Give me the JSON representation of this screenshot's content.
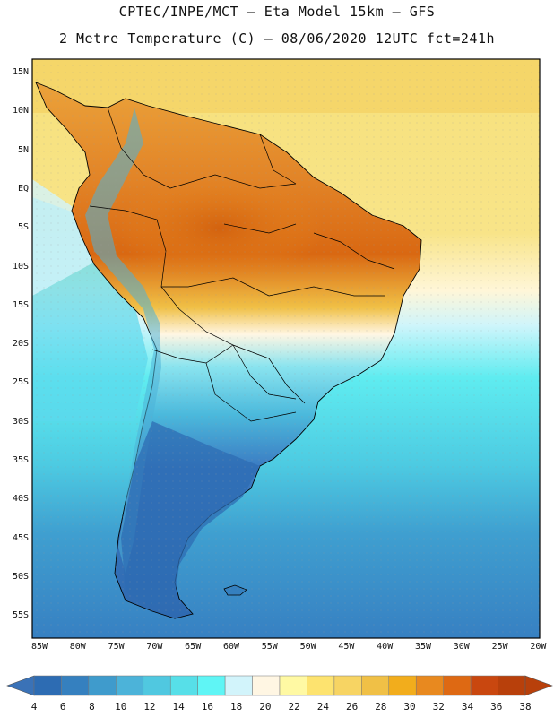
{
  "header": {
    "line1": "CPTEC/INPE/MCT –  Eta Model 15km – GFS",
    "line2": "2 Metre Temperature (C) – 08/06/2020 12UTC fct=241h"
  },
  "axes": {
    "lat_labels": [
      "15N",
      "10N",
      "5N",
      "EQ",
      "5S",
      "10S",
      "15S",
      "20S",
      "25S",
      "30S",
      "35S",
      "40S",
      "45S",
      "50S",
      "55S"
    ],
    "lon_labels": [
      "85W",
      "80W",
      "75W",
      "70W",
      "65W",
      "60W",
      "55W",
      "50W",
      "45W",
      "40W",
      "35W",
      "30W",
      "25W",
      "20W"
    ]
  },
  "colorbar": {
    "levels": [
      "4",
      "6",
      "8",
      "10",
      "12",
      "14",
      "16",
      "18",
      "20",
      "22",
      "24",
      "26",
      "28",
      "30",
      "32",
      "34",
      "36",
      "38"
    ],
    "colors": [
      "#2d6cb3",
      "#3580bf",
      "#3f9bcc",
      "#4cb3d9",
      "#50c8e0",
      "#57dfe8",
      "#5ff5f5",
      "#d2f4fb",
      "#fff6e3",
      "#fff9a3",
      "#fde36f",
      "#f7d463",
      "#f0c046",
      "#f2ad1c",
      "#e8891f",
      "#de6913",
      "#c9470f",
      "#b8400b"
    ],
    "under_color": "#3a72b7",
    "over_color": "#b8400b"
  },
  "map": {
    "ocean_color_tropical_atlantic": "#f5d769",
    "ocean_color_mid": "#5ee8ee",
    "ocean_color_south": "#3d88c5",
    "land_hot_color": "#d96812",
    "land_warm_color": "#eb9d2c",
    "land_cold_color": "#3b7ac2"
  }
}
